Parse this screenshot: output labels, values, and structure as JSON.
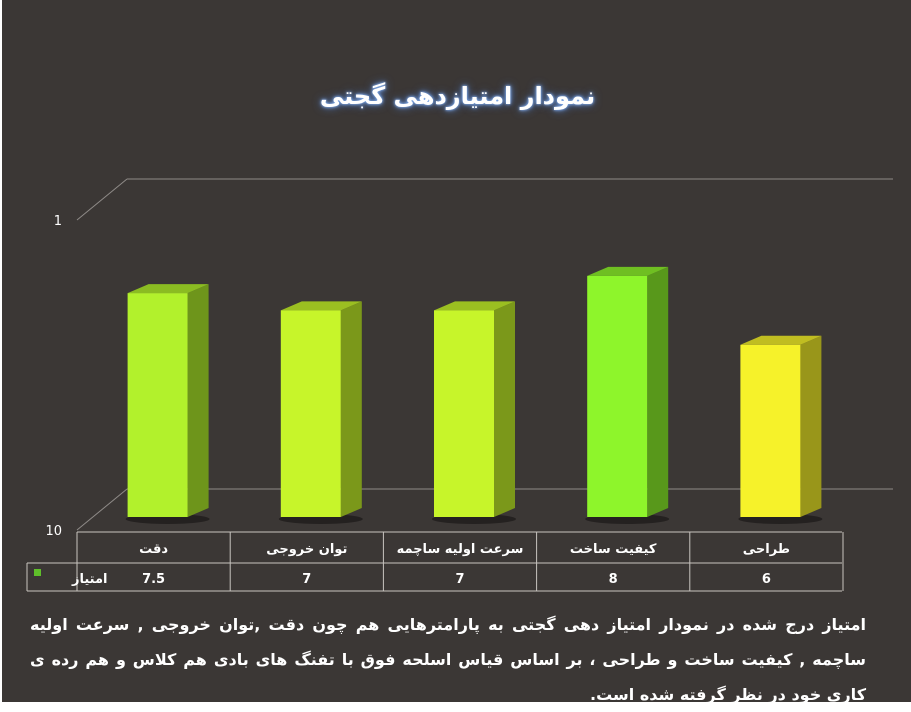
{
  "chart_data": {
    "type": "bar",
    "title": "نمودار امتیازدهی گجتی",
    "categories": [
      "دقت",
      "توان خروجی",
      "سرعت اولیه ساچمه",
      "کیفیت ساخت",
      "طراحی"
    ],
    "series": [
      {
        "name": "امتیاز",
        "values": [
          7.5,
          7,
          7,
          8,
          6
        ]
      }
    ],
    "bar_colors": [
      "#b2f12c",
      "#c7f52a",
      "#c7f52a",
      "#8ef52b",
      "#f6f22a"
    ],
    "legend_color": "#5fbf2a",
    "yticks": [
      "1",
      "10"
    ],
    "ylim": [
      1,
      10
    ],
    "gridlines": true,
    "data_table": true
  },
  "caption": "امتیاز درج شده در نمودار امتیاز دهی گجتی  به پارامترهایی هم چون دقت ,توان خروجی , سرعت اولیه ساچمه , کیفیت ساخت و طراحی ، بر اساس قیاس اسلحه فوق با تفنگ های بادی هم کلاس و هم رده ی کاری خود در نظر گرفته شده است."
}
